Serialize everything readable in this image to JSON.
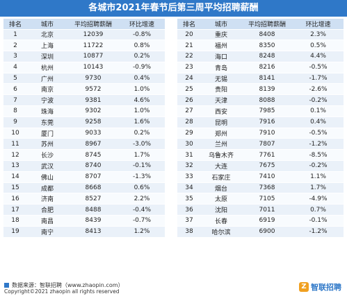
{
  "title": "各城市2021年春节后第三周平均招聘薪酬",
  "headers": [
    "排名",
    "城市",
    "平均招聘薪酬",
    "环比增速"
  ],
  "left_rows": [
    [
      "1",
      "北京",
      "12039",
      "-0.8%"
    ],
    [
      "2",
      "上海",
      "11722",
      "0.8%"
    ],
    [
      "3",
      "深圳",
      "10877",
      "0.2%"
    ],
    [
      "4",
      "杭州",
      "10143",
      "-0.9%"
    ],
    [
      "5",
      "广州",
      "9730",
      "0.4%"
    ],
    [
      "6",
      "南京",
      "9572",
      "1.0%"
    ],
    [
      "7",
      "宁波",
      "9381",
      "4.6%"
    ],
    [
      "8",
      "珠海",
      "9302",
      "1.0%"
    ],
    [
      "9",
      "东莞",
      "9258",
      "1.6%"
    ],
    [
      "10",
      "厦门",
      "9033",
      "0.2%"
    ],
    [
      "11",
      "苏州",
      "8967",
      "-3.0%"
    ],
    [
      "12",
      "长沙",
      "8745",
      "1.7%"
    ],
    [
      "13",
      "武汉",
      "8740",
      "-0.1%"
    ],
    [
      "14",
      "佛山",
      "8707",
      "-1.3%"
    ],
    [
      "15",
      "成都",
      "8668",
      "0.6%"
    ],
    [
      "16",
      "济南",
      "8527",
      "2.2%"
    ],
    [
      "17",
      "合肥",
      "8488",
      "-0.4%"
    ],
    [
      "18",
      "南昌",
      "8439",
      "-0.7%"
    ],
    [
      "19",
      "南宁",
      "8413",
      "1.2%"
    ]
  ],
  "right_rows": [
    [
      "20",
      "重庆",
      "8408",
      "2.3%"
    ],
    [
      "21",
      "福州",
      "8350",
      "0.5%"
    ],
    [
      "22",
      "海口",
      "8248",
      "4.4%"
    ],
    [
      "23",
      "青岛",
      "8216",
      "-0.5%"
    ],
    [
      "24",
      "无锡",
      "8141",
      "-1.7%"
    ],
    [
      "25",
      "贵阳",
      "8139",
      "-2.6%"
    ],
    [
      "26",
      "天津",
      "8088",
      "-0.2%"
    ],
    [
      "27",
      "西安",
      "7985",
      "0.1%"
    ],
    [
      "28",
      "昆明",
      "7916",
      "0.4%"
    ],
    [
      "29",
      "郑州",
      "7910",
      "-0.5%"
    ],
    [
      "30",
      "兰州",
      "7807",
      "-1.2%"
    ],
    [
      "31",
      "乌鲁木齐",
      "7761",
      "-8.5%"
    ],
    [
      "32",
      "大连",
      "7675",
      "-0.2%"
    ],
    [
      "33",
      "石家庄",
      "7410",
      "1.1%"
    ],
    [
      "34",
      "烟台",
      "7368",
      "1.7%"
    ],
    [
      "35",
      "太原",
      "7105",
      "-4.9%"
    ],
    [
      "36",
      "沈阳",
      "7011",
      "0.7%"
    ],
    [
      "37",
      "长春",
      "6919",
      "-0.1%"
    ],
    [
      "38",
      "哈尔滨",
      "6900",
      "-1.2%"
    ]
  ],
  "footer": {
    "source": "数据来源：智联招聘（www.zhaopin.com）",
    "copyright": "Copyright©2021 zhaopin all rights reserved",
    "logo_text": "智联招聘",
    "logo_mark": "Z"
  },
  "colors": {
    "title_bg": "#2f78c8",
    "header_bg": "#cfe0f3",
    "row_odd": "#eaf1f9",
    "row_even": "#f8fbfe",
    "logo_accent": "#f0a020"
  }
}
